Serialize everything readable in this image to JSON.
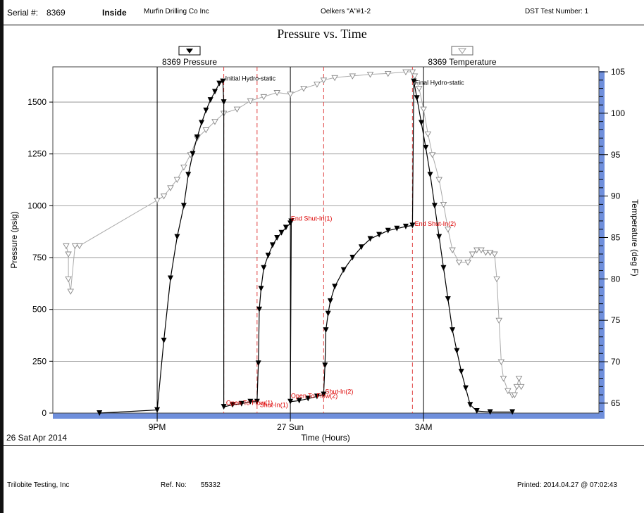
{
  "header": {
    "serial_label": "Serial #:",
    "serial_number": "8369",
    "location": "Inside",
    "company": "Murfin Drilling Co Inc",
    "well": "Oelkers \"A\"#1-2",
    "dst": "DST Test Number: 1"
  },
  "footer": {
    "company": "Trilobite Testing, Inc",
    "ref_label": "Ref. No:",
    "ref_number": "55332",
    "printed": "Printed: 2014.04.27 @ 07:02:43"
  },
  "chart_data": {
    "type": "line",
    "title": "Pressure vs. Time",
    "xlabel": "Time (Hours)",
    "ylabel": "Pressure (psig)",
    "y2label": "Temperature (deg F)",
    "x_unit": "hours from 27 Sun 00:00",
    "xlim": [
      -5.35,
      6.95
    ],
    "ylim": [
      0,
      1670
    ],
    "y2lim": [
      63.8,
      105.6
    ],
    "x_ticks": [
      {
        "x": -3,
        "label": "9PM"
      },
      {
        "x": 0,
        "label": "27 Sun"
      },
      {
        "x": 3,
        "label": "3AM"
      }
    ],
    "start_date_label": "26 Sat Apr 2014",
    "y_ticks": [
      0,
      250,
      500,
      750,
      1000,
      1250,
      1500
    ],
    "y2_ticks": [
      65,
      70,
      75,
      80,
      85,
      90,
      95,
      100,
      105
    ],
    "grid": true,
    "legend": [
      {
        "name": "8369 Pressure",
        "marker": "filled-down-triangle",
        "color": "#000000"
      },
      {
        "name": "8369 Temperature",
        "marker": "open-down-triangle",
        "color": "#999999"
      }
    ],
    "event_lines": [
      -1.5,
      -0.75,
      0.75,
      2.75
    ],
    "annotations": [
      {
        "text": "Initial Hydro-static",
        "x": -1.5,
        "y": 1600,
        "color": "#000000"
      },
      {
        "text": "Open To Flow(1)",
        "x": -1.48,
        "y": 35,
        "color": "#dd0000"
      },
      {
        "text": "Shut-In(1)",
        "x": -0.72,
        "y": 25,
        "color": "#dd0000"
      },
      {
        "text": "End Shut-In(1)",
        "x": -0.02,
        "y": 925,
        "color": "#dd0000"
      },
      {
        "text": "Open To Flow(2)",
        "x": -0.02,
        "y": 70,
        "color": "#dd0000"
      },
      {
        "text": "Shut-In(2)",
        "x": 0.75,
        "y": 90,
        "color": "#dd0000"
      },
      {
        "text": "End Shut-In(2)",
        "x": 2.77,
        "y": 900,
        "color": "#dd0000"
      },
      {
        "text": "Final Hydro-static",
        "x": 2.77,
        "y": 1580,
        "color": "#000000"
      }
    ],
    "series": [
      {
        "name": "8369 Pressure",
        "x": [
          -4.3,
          -3.0,
          -2.85,
          -2.7,
          -2.55,
          -2.4,
          -2.3,
          -2.2,
          -2.1,
          -2.0,
          -1.9,
          -1.8,
          -1.7,
          -1.6,
          -1.52,
          -1.5,
          -1.5,
          -1.3,
          -1.1,
          -0.9,
          -0.75,
          -0.72,
          -0.7,
          -0.66,
          -0.6,
          -0.5,
          -0.4,
          -0.3,
          -0.2,
          -0.1,
          0.0,
          0.02,
          0.0,
          0.2,
          0.4,
          0.6,
          0.75,
          0.78,
          0.8,
          0.85,
          0.9,
          1.0,
          1.2,
          1.4,
          1.6,
          1.8,
          2.0,
          2.2,
          2.4,
          2.6,
          2.75,
          2.78,
          2.85,
          2.95,
          3.05,
          3.15,
          3.25,
          3.35,
          3.45,
          3.55,
          3.65,
          3.75,
          3.85,
          3.95,
          4.05,
          4.2,
          4.5,
          5.0
        ],
        "y": [
          0,
          15,
          350,
          650,
          850,
          1000,
          1150,
          1250,
          1330,
          1400,
          1460,
          1510,
          1550,
          1590,
          1600,
          1500,
          30,
          40,
          45,
          55,
          55,
          240,
          500,
          600,
          700,
          760,
          810,
          845,
          870,
          895,
          915,
          925,
          55,
          60,
          70,
          80,
          90,
          230,
          400,
          480,
          540,
          610,
          690,
          750,
          800,
          840,
          860,
          880,
          890,
          900,
          905,
          1600,
          1520,
          1400,
          1280,
          1150,
          1000,
          850,
          700,
          550,
          400,
          300,
          200,
          120,
          40,
          10,
          5,
          5
        ]
      },
      {
        "name": "8369 Temperature",
        "x": [
          -5.05,
          -5.0,
          -5.0,
          -4.95,
          -4.85,
          -4.75,
          -3.0,
          -2.85,
          -2.7,
          -2.55,
          -2.4,
          -2.25,
          -2.1,
          -1.9,
          -1.7,
          -1.5,
          -1.2,
          -0.9,
          -0.6,
          -0.3,
          0.0,
          0.3,
          0.6,
          0.75,
          1.0,
          1.4,
          1.8,
          2.2,
          2.6,
          2.75,
          2.8,
          2.9,
          3.0,
          3.1,
          3.2,
          3.35,
          3.45,
          3.55,
          3.65,
          3.8,
          4.0,
          4.1,
          4.2,
          4.3,
          4.4,
          4.5,
          4.6,
          4.65,
          4.7,
          4.75,
          4.8,
          4.9,
          5.0,
          5.05,
          5.1,
          5.15,
          5.2
        ],
        "y": [
          84,
          83,
          80,
          78.5,
          84,
          84,
          89.5,
          90,
          91,
          92,
          93.5,
          95,
          97,
          98,
          99,
          100,
          100.5,
          101.5,
          102,
          102.5,
          102.3,
          103,
          103.5,
          104,
          104.3,
          104.5,
          104.7,
          104.8,
          105,
          105,
          104.5,
          103,
          100.5,
          97.5,
          95,
          92,
          89,
          86,
          83.5,
          82,
          82,
          83,
          83.5,
          83.5,
          83.2,
          83.2,
          83,
          80,
          75,
          70,
          68,
          66.5,
          66,
          66,
          67,
          68,
          67
        ]
      }
    ]
  }
}
